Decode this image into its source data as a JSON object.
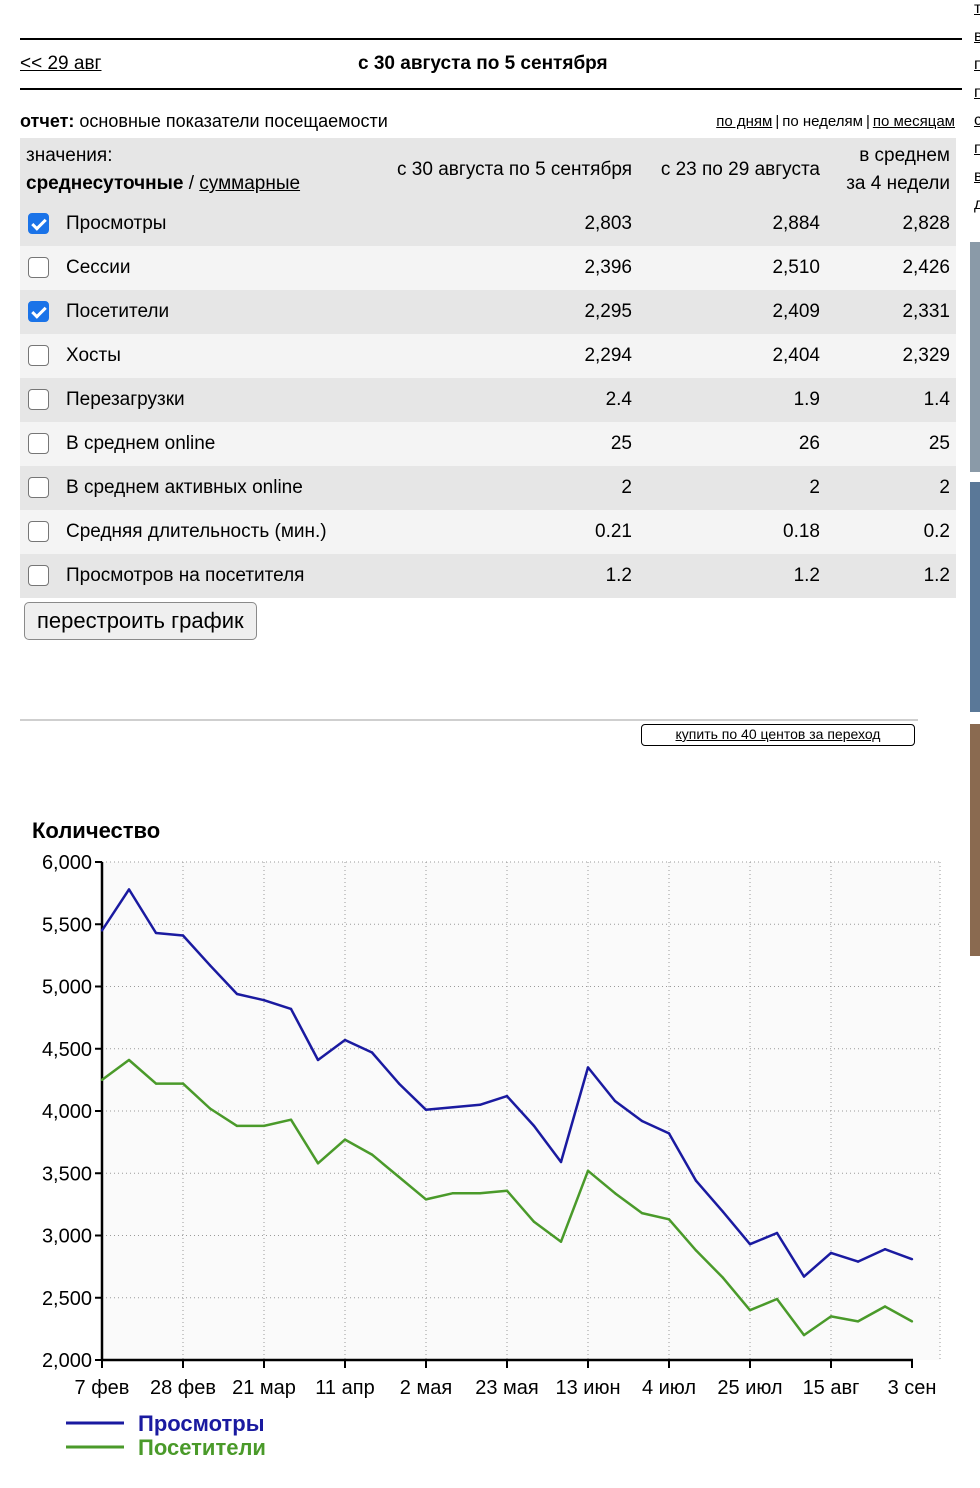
{
  "nav": {
    "prev_label": "<< 29 авг",
    "period_title": "с 30 августа по 5 сентября"
  },
  "report": {
    "label": "отчет:",
    "name": "основные показатели посещаемости",
    "views": [
      {
        "label": "по дням",
        "link": true
      },
      {
        "label": "по неделям",
        "link": false
      },
      {
        "label": "по месяцам",
        "link": true
      }
    ]
  },
  "table": {
    "values_label": "значения:",
    "mode_active": "среднесуточные",
    "mode_sep": " / ",
    "mode_other": "суммарные",
    "col1": "с 30 августа по 5 сентября",
    "col2": "с 23 по 29 августа",
    "col3_line1": "в среднем",
    "col3_line2": "за 4 недели",
    "rows": [
      {
        "label": "Просмотры",
        "checked": true,
        "v1": "2,803",
        "v2": "2,884",
        "v3": "2,828"
      },
      {
        "label": "Сессии",
        "checked": false,
        "v1": "2,396",
        "v2": "2,510",
        "v3": "2,426"
      },
      {
        "label": "Посетители",
        "checked": true,
        "v1": "2,295",
        "v2": "2,409",
        "v3": "2,331"
      },
      {
        "label": "Хосты",
        "checked": false,
        "v1": "2,294",
        "v2": "2,404",
        "v3": "2,329"
      },
      {
        "label": "Перезагрузки",
        "checked": false,
        "v1": "2.4",
        "v2": "1.9",
        "v3": "1.4"
      },
      {
        "label": "В среднем online",
        "checked": false,
        "v1": "25",
        "v2": "26",
        "v3": "25"
      },
      {
        "label": "В среднем активных online",
        "checked": false,
        "v1": "2",
        "v2": "2",
        "v3": "2"
      },
      {
        "label": "Средняя длительность (мин.)",
        "checked": false,
        "v1": "0.21",
        "v2": "0.18",
        "v3": "0.2"
      },
      {
        "label": "Просмотров на посетителя",
        "checked": false,
        "v1": "1.2",
        "v2": "1.2",
        "v3": "1.2"
      }
    ]
  },
  "rebuild_button": "перестроить график",
  "ad_link": "купить по 40 центов за переход",
  "right_strip_letters": [
    "т",
    "в",
    "п",
    "п",
    "с",
    "п",
    "в",
    "д"
  ],
  "colors": {
    "views_line": "#1a1aa0",
    "visitors_line": "#4a9a2a",
    "row_odd": "#e6e6e6",
    "row_even": "#f4f4f4",
    "checkbox_on": "#1a73e8"
  },
  "chart_data": {
    "type": "line",
    "ylabel": "Количество",
    "ylim": [
      2000,
      6000
    ],
    "yticks": [
      "2,000",
      "2,500",
      "3,000",
      "3,500",
      "4,000",
      "4,500",
      "5,000",
      "5,500",
      "6,000"
    ],
    "xtick_labels": [
      "7 фев",
      "28 фев",
      "21 мар",
      "11 апр",
      "2 мая",
      "23 мая",
      "13 июн",
      "4 июл",
      "25 июл",
      "15 авг",
      "3 сен"
    ],
    "grid": true,
    "legend_position": "bottom-left",
    "series": [
      {
        "name": "Просмотры",
        "color": "#1a1aa0",
        "values": [
          5450,
          5780,
          5430,
          5410,
          5170,
          4940,
          4890,
          4820,
          4410,
          4570,
          4470,
          4220,
          4010,
          4030,
          4050,
          4120,
          3880,
          3590,
          4350,
          4080,
          3920,
          3820,
          3440,
          3190,
          2930,
          3020,
          2670,
          2860,
          2790,
          2890,
          2810
        ]
      },
      {
        "name": "Посетители",
        "color": "#4a9a2a",
        "values": [
          4250,
          4410,
          4220,
          4220,
          4020,
          3880,
          3880,
          3930,
          3580,
          3770,
          3650,
          3470,
          3290,
          3340,
          3340,
          3360,
          3110,
          2950,
          3520,
          3340,
          3180,
          3130,
          2880,
          2660,
          2400,
          2490,
          2200,
          2350,
          2310,
          2430,
          2310
        ]
      }
    ]
  }
}
